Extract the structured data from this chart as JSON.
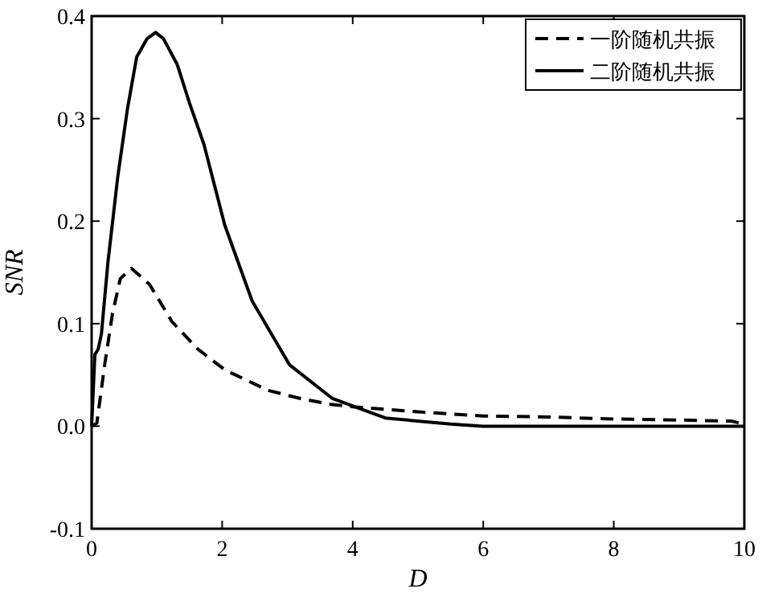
{
  "chart_data": {
    "type": "line",
    "xlabel": "D",
    "ylabel": "SNR",
    "xlim": [
      0,
      10
    ],
    "ylim": [
      -0.1,
      0.4
    ],
    "xticks": [
      0,
      2,
      4,
      6,
      8,
      10
    ],
    "yticks": [
      -0.1,
      {
        "value": 0,
        "label": "0.0"
      },
      0.1,
      0.2,
      0.3,
      0.4
    ],
    "grid": false,
    "legend": "top right",
    "series": [
      {
        "name": "一阶随机共振",
        "color": "#000000",
        "line_style": "dashed",
        "x": [
          0,
          0.08,
          0.2,
          0.32,
          0.44,
          0.61,
          0.89,
          1.23,
          1.63,
          2.04,
          2.7,
          3.2,
          3.69,
          4,
          5,
          6,
          7,
          8,
          9,
          9.8,
          10
        ],
        "values": [
          0,
          0.003,
          0.06,
          0.11,
          0.144,
          0.154,
          0.138,
          0.102,
          0.075,
          0.055,
          0.035,
          0.027,
          0.021,
          0.019,
          0.014,
          0.01,
          0.009,
          0.007,
          0.006,
          0.005,
          0.002
        ]
      },
      {
        "name": "二阶随机共振",
        "color": "#000000",
        "line_style": "solid",
        "x": [
          0,
          0.05,
          0.1,
          0.15,
          0.25,
          0.4,
          0.55,
          0.69,
          0.85,
          0.98,
          1.1,
          1.31,
          1.5,
          1.72,
          2.04,
          2.46,
          3.03,
          3.69,
          4.5,
          5.5,
          6,
          8,
          10
        ],
        "values": [
          0,
          0.07,
          0.075,
          0.09,
          0.16,
          0.243,
          0.31,
          0.36,
          0.378,
          0.384,
          0.378,
          0.353,
          0.315,
          0.275,
          0.196,
          0.122,
          0.06,
          0.027,
          0.008,
          0.002,
          0,
          0,
          0
        ]
      }
    ]
  }
}
